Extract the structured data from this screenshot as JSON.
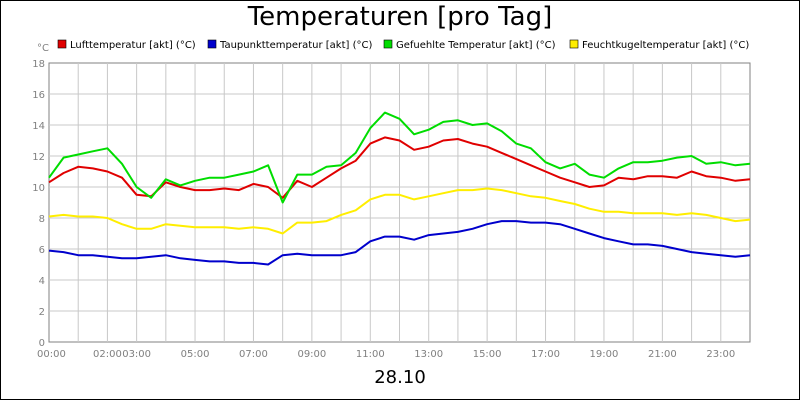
{
  "header": {
    "title": "Temperaturen [pro Tag]"
  },
  "footer": {
    "date": "28.10"
  },
  "chart_data": {
    "type": "line",
    "title": "Temperaturen [pro Tag]",
    "xlabel": "28.10",
    "ylabel": "°C",
    "ylim": [
      0,
      18
    ],
    "y_ticks": [
      "0",
      "2",
      "4",
      "6",
      "8",
      "10",
      "12",
      "14",
      "16",
      "18"
    ],
    "x_ticks": [
      "00:00",
      "02:00",
      "03:00",
      "05:00",
      "07:00",
      "09:00",
      "11:00",
      "13:00",
      "15:00",
      "17:00",
      "19:00",
      "21:00",
      "23:00"
    ],
    "x_tick_hours": [
      0,
      2,
      3,
      5,
      7,
      9,
      11,
      13,
      15,
      17,
      19,
      21,
      23
    ],
    "xlim_hours": [
      0,
      24
    ],
    "grid": true,
    "legend_position": "top",
    "x": [
      0,
      0.5,
      1,
      1.5,
      2,
      2.5,
      3,
      3.5,
      4,
      4.5,
      5,
      5.5,
      6,
      6.5,
      7,
      7.5,
      8,
      8.5,
      9,
      9.5,
      10,
      10.5,
      11,
      11.5,
      12,
      12.5,
      13,
      13.5,
      14,
      14.5,
      15,
      15.5,
      16,
      16.5,
      17,
      17.5,
      18,
      18.5,
      19,
      19.5,
      20,
      20.5,
      21,
      21.5,
      22,
      22.5,
      23,
      23.5,
      24
    ],
    "series": [
      {
        "name": "Lufttemperatur [akt] (°C)",
        "color": "#e00000",
        "values": [
          10.3,
          10.9,
          11.3,
          11.2,
          11.0,
          10.6,
          9.5,
          9.4,
          10.3,
          10.0,
          9.8,
          9.8,
          9.9,
          9.8,
          10.2,
          10.0,
          9.3,
          10.4,
          10.0,
          10.6,
          11.2,
          11.7,
          12.8,
          13.2,
          13.0,
          12.4,
          12.6,
          13.0,
          13.1,
          12.8,
          12.6,
          12.2,
          11.8,
          11.4,
          11.0,
          10.6,
          10.3,
          10.0,
          10.1,
          10.6,
          10.5,
          10.7,
          10.7,
          10.6,
          11.0,
          10.7,
          10.6,
          10.4,
          10.5
        ]
      },
      {
        "name": "Taupunkttemperatur [akt] (°C)",
        "color": "#0000cc",
        "values": [
          5.9,
          5.8,
          5.6,
          5.6,
          5.5,
          5.4,
          5.4,
          5.5,
          5.6,
          5.4,
          5.3,
          5.2,
          5.2,
          5.1,
          5.1,
          5.0,
          5.6,
          5.7,
          5.6,
          5.6,
          5.6,
          5.8,
          6.5,
          6.8,
          6.8,
          6.6,
          6.9,
          7.0,
          7.1,
          7.3,
          7.6,
          7.8,
          7.8,
          7.7,
          7.7,
          7.6,
          7.3,
          7.0,
          6.7,
          6.5,
          6.3,
          6.3,
          6.2,
          6.0,
          5.8,
          5.7,
          5.6,
          5.5,
          5.6
        ]
      },
      {
        "name": "Gefuehlte Temperatur [akt] (°C)",
        "color": "#00dd00",
        "values": [
          10.6,
          11.9,
          12.1,
          12.3,
          12.5,
          11.5,
          10.0,
          9.3,
          10.5,
          10.1,
          10.4,
          10.6,
          10.6,
          10.8,
          11.0,
          11.4,
          9.0,
          10.8,
          10.8,
          11.3,
          11.4,
          12.2,
          13.8,
          14.8,
          14.4,
          13.4,
          13.7,
          14.2,
          14.3,
          14.0,
          14.1,
          13.6,
          12.8,
          12.5,
          11.6,
          11.2,
          11.5,
          10.8,
          10.6,
          11.2,
          11.6,
          11.6,
          11.7,
          11.9,
          12.0,
          11.5,
          11.6,
          11.4,
          11.5
        ]
      },
      {
        "name": "Feuchtkugeltemperatur [akt] (°C)",
        "color": "#ffee00",
        "values": [
          8.1,
          8.2,
          8.1,
          8.1,
          8.0,
          7.6,
          7.3,
          7.3,
          7.6,
          7.5,
          7.4,
          7.4,
          7.4,
          7.3,
          7.4,
          7.3,
          7.0,
          7.7,
          7.7,
          7.8,
          8.2,
          8.5,
          9.2,
          9.5,
          9.5,
          9.2,
          9.4,
          9.6,
          9.8,
          9.8,
          9.9,
          9.8,
          9.6,
          9.4,
          9.3,
          9.1,
          8.9,
          8.6,
          8.4,
          8.4,
          8.3,
          8.3,
          8.3,
          8.2,
          8.3,
          8.2,
          8.0,
          7.8,
          7.9
        ]
      }
    ]
  }
}
